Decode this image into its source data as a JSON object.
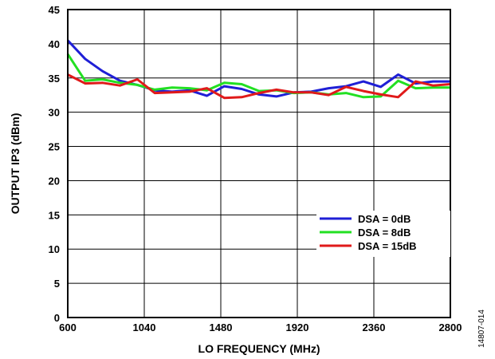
{
  "figure_id": "14807-014",
  "chart_data": {
    "type": "line",
    "xlabel": "LO FREQUENCY (MHz)",
    "ylabel": "OUTPUT IP3 (dBm)",
    "xlim": [
      600,
      2800
    ],
    "ylim": [
      0,
      45
    ],
    "x_ticks": [
      600,
      1040,
      1480,
      1920,
      2360,
      2800
    ],
    "y_ticks": [
      0,
      5,
      10,
      15,
      20,
      25,
      30,
      35,
      40,
      45
    ],
    "grid": true,
    "legend_position": "lower-right",
    "series": [
      {
        "name": "DSA = 0dB",
        "color": "#1f1fd6",
        "x": [
          600,
          700,
          800,
          900,
          1000,
          1100,
          1200,
          1300,
          1400,
          1500,
          1600,
          1700,
          1800,
          1900,
          2000,
          2100,
          2200,
          2300,
          2400,
          2500,
          2600,
          2700,
          2800
        ],
        "y": [
          40.5,
          37.8,
          36.0,
          34.6,
          34.0,
          33.2,
          33.0,
          33.2,
          32.4,
          33.8,
          33.4,
          32.6,
          32.3,
          32.9,
          33.0,
          33.5,
          33.8,
          34.5,
          33.7,
          35.5,
          34.2,
          34.5,
          34.5
        ]
      },
      {
        "name": "DSA = 8dB",
        "color": "#22e022",
        "x": [
          600,
          700,
          800,
          900,
          1000,
          1100,
          1200,
          1300,
          1400,
          1500,
          1600,
          1700,
          1800,
          1900,
          2000,
          2100,
          2200,
          2300,
          2400,
          2500,
          2600,
          2700,
          2800
        ],
        "y": [
          38.5,
          34.6,
          34.8,
          34.3,
          34.0,
          33.3,
          33.6,
          33.5,
          33.2,
          34.3,
          34.1,
          33.1,
          33.2,
          32.8,
          32.9,
          32.6,
          32.8,
          32.2,
          32.3,
          34.6,
          33.5,
          33.6,
          33.6
        ]
      },
      {
        "name": "DSA = 15dB",
        "color": "#e01a1a",
        "x": [
          600,
          700,
          800,
          900,
          1000,
          1100,
          1200,
          1300,
          1400,
          1500,
          1600,
          1700,
          1800,
          1900,
          2000,
          2100,
          2200,
          2300,
          2400,
          2500,
          2600,
          2700,
          2800
        ],
        "y": [
          35.5,
          34.2,
          34.3,
          33.9,
          34.8,
          32.8,
          32.9,
          33.0,
          33.5,
          32.1,
          32.2,
          32.8,
          33.3,
          32.9,
          32.9,
          32.5,
          33.7,
          33.1,
          32.6,
          32.2,
          34.5,
          33.9,
          34.1
        ]
      }
    ]
  }
}
